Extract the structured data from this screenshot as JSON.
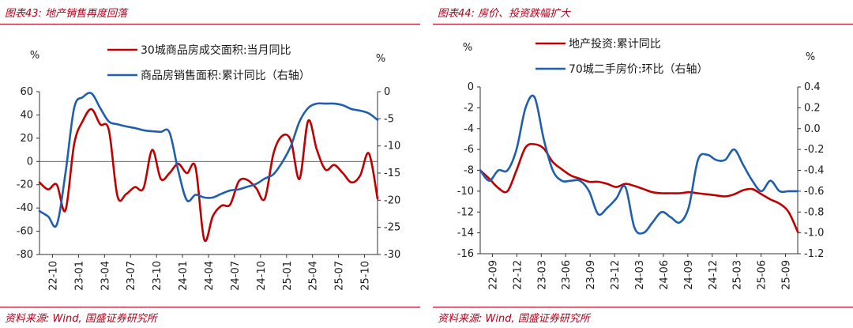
{
  "colors": {
    "red": "#c00000",
    "blue": "#1f5fae",
    "accent": "#b3001b"
  },
  "chart_data": [
    {
      "type": "line",
      "title": "图表43: 地产销售再度回落",
      "source": "资料来源: Wind, 国盛证券研究所",
      "left_unit": "%",
      "right_unit": "%",
      "x_labels": [
        "22-10",
        "23-01",
        "23-04",
        "23-07",
        "23-10",
        "24-01",
        "24-04",
        "24-07",
        "24-10",
        "25-01",
        "25-04",
        "25-07",
        "25-10"
      ],
      "ylim_left": [
        -80,
        60
      ],
      "yticks_left": [
        60,
        40,
        20,
        0,
        -20,
        -40,
        -60,
        -80
      ],
      "ylim_right": [
        -30,
        0
      ],
      "yticks_right": [
        0,
        -5,
        -10,
        -15,
        -20,
        -25,
        -30
      ],
      "legend_position": "top-center",
      "series": [
        {
          "name": "30城商品房成交面积:当月同比",
          "axis": "left",
          "color_key": "red",
          "values": [
            -18,
            -24,
            -20,
            -42,
            15,
            35,
            45,
            32,
            27,
            -30,
            -28,
            -22,
            -23,
            10,
            -15,
            -10,
            -2,
            -10,
            -5,
            -67,
            -47,
            -38,
            -37,
            -17,
            -16,
            -23,
            -32,
            7,
            22,
            18,
            -15,
            35,
            10,
            -7,
            -3,
            -10,
            -18,
            -12,
            7,
            -32
          ]
        },
        {
          "name": "商品房销售面积:累计同比（右轴）",
          "axis": "right",
          "color_key": "blue",
          "values": [
            -22,
            -23,
            -24.5,
            -15,
            -3,
            -1,
            -0.3,
            -3,
            -5.5,
            -6,
            -6.4,
            -6.7,
            -7.1,
            -7.3,
            -7.4,
            -7.5,
            -14.5,
            -20,
            -19,
            -19.5,
            -19.5,
            -18.8,
            -18.2,
            -18,
            -17.5,
            -17,
            -16,
            -15.2,
            -13,
            -10,
            -5.5,
            -3,
            -2.2,
            -2.2,
            -2.2,
            -2.5,
            -3.2,
            -3.5,
            -4,
            -5.2
          ]
        }
      ]
    },
    {
      "type": "line",
      "title": "图表44: 房价、投资跌幅扩大",
      "source": "资料来源: Wind, 国盛证券研究所",
      "left_unit": "%",
      "right_unit": "%",
      "x_labels": [
        "22-09",
        "22-12",
        "23-03",
        "23-06",
        "23-09",
        "23-12",
        "24-03",
        "24-06",
        "24-09",
        "24-12",
        "25-03",
        "25-06",
        "25-09"
      ],
      "ylim_left": [
        -16,
        0
      ],
      "yticks_left": [
        0,
        -2,
        -4,
        -6,
        -8,
        -10,
        -12,
        -14,
        -16
      ],
      "ylim_right": [
        -1.2,
        0.4
      ],
      "yticks_right": [
        0.4,
        0.2,
        0.0,
        -0.2,
        -0.4,
        -0.6,
        -0.8,
        -1.0,
        -1.2
      ],
      "legend_position": "top-center",
      "series": [
        {
          "name": "地产投资:累计同比",
          "axis": "left",
          "color_key": "red",
          "values": [
            -8,
            -8.8,
            -9.7,
            -10,
            -8,
            -5.8,
            -5.5,
            -5.9,
            -7.2,
            -7.9,
            -8.5,
            -8.8,
            -9.1,
            -9.1,
            -9.3,
            -9.6,
            -9.3,
            -9.5,
            -9.8,
            -10.1,
            -10.2,
            -10.2,
            -10.2,
            -10.1,
            -10.2,
            -10.3,
            -10.4,
            -10.5,
            -10.3,
            -9.9,
            -9.8,
            -10.3,
            -10.8,
            -11.2,
            -12,
            -13.9
          ]
        },
        {
          "name": "70城二手房价:环比（右轴）",
          "axis": "right",
          "color_key": "blue",
          "values": [
            -0.4,
            -0.5,
            -0.4,
            -0.4,
            -0.2,
            0.2,
            0.3,
            -0.1,
            -0.4,
            -0.5,
            -0.5,
            -0.5,
            -0.6,
            -0.82,
            -0.76,
            -0.67,
            -0.56,
            -0.95,
            -1.0,
            -0.9,
            -0.8,
            -0.85,
            -0.9,
            -0.75,
            -0.3,
            -0.25,
            -0.3,
            -0.3,
            -0.2,
            -0.35,
            -0.5,
            -0.6,
            -0.5,
            -0.6,
            -0.6,
            -0.6
          ]
        }
      ]
    }
  ]
}
